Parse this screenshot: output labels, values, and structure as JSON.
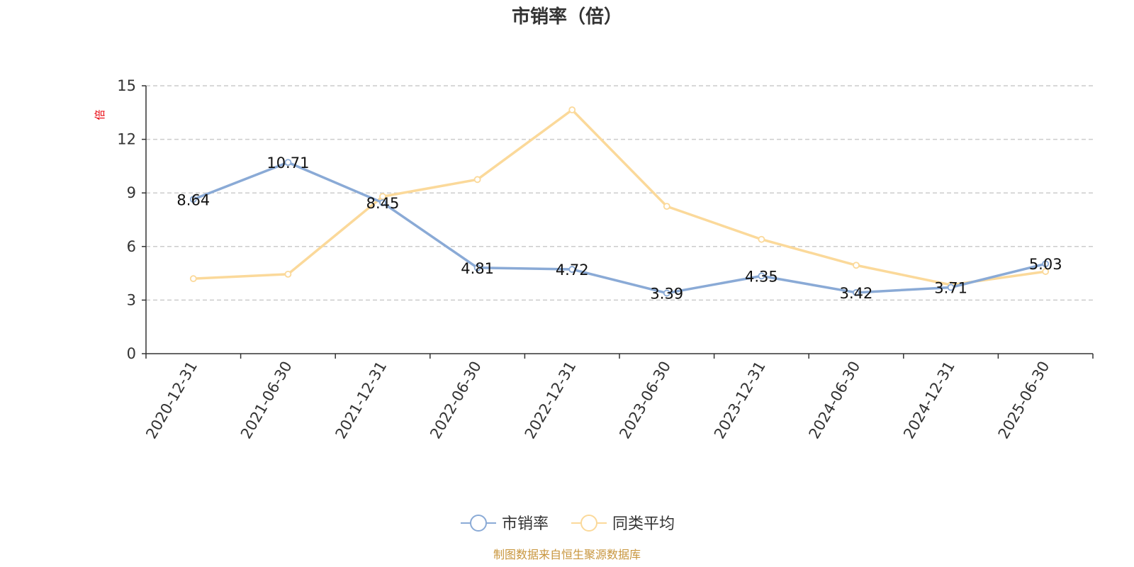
{
  "chart_data": {
    "type": "line",
    "title": "市销率（倍）",
    "ylabel": "倍",
    "xlabel": "",
    "categories": [
      "2020-12-31",
      "2021-06-30",
      "2021-12-31",
      "2022-06-30",
      "2022-12-31",
      "2023-06-30",
      "2023-12-31",
      "2024-06-30",
      "2024-12-31",
      "2025-06-30"
    ],
    "ylim": [
      0,
      15
    ],
    "yticks": [
      0,
      3,
      6,
      9,
      12,
      15
    ],
    "grid": true,
    "legend_position": "bottom",
    "series": [
      {
        "name": "市销率",
        "color": "#8aaad6",
        "values": [
          8.64,
          10.71,
          8.45,
          4.81,
          4.72,
          3.39,
          4.35,
          3.42,
          3.71,
          5.03
        ],
        "labels": [
          "8.64",
          "10.71",
          "8.45",
          "4.81",
          "4.72",
          "3.39",
          "4.35",
          "3.42",
          "3.71",
          "5.03"
        ]
      },
      {
        "name": "同类平均",
        "color": "#fbd99a",
        "values": [
          4.2,
          4.45,
          8.8,
          9.75,
          13.65,
          8.25,
          6.4,
          4.95,
          3.85,
          4.6
        ]
      }
    ]
  },
  "source": "制图数据来自恒生聚源数据库"
}
